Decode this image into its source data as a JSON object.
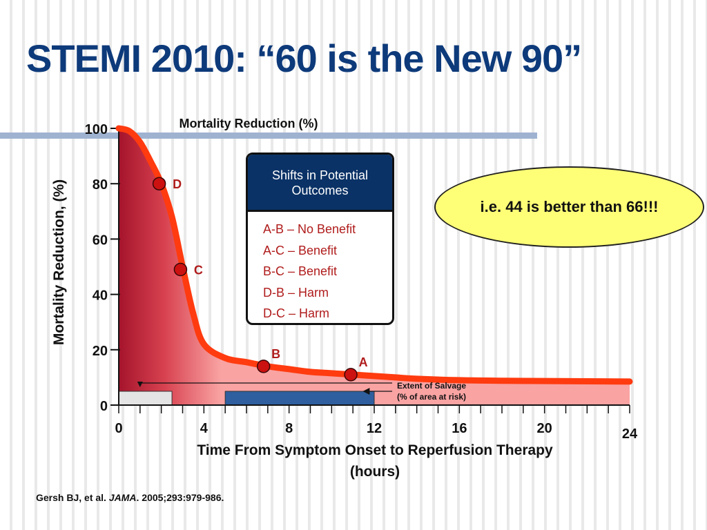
{
  "slide": {
    "title": "STEMI 2010: “60 is the New 90”",
    "citation_authors": "Gersh BJ, et al. ",
    "citation_journal": "JAMA",
    "citation_rest": ". 2005;293:979-986."
  },
  "outcomes_box": {
    "header": "Shifts in Potential Outcomes",
    "items": [
      "A-B – No Benefit",
      "A-C – Benefit",
      "B-C – Benefit",
      "D-B – Harm",
      "D-C – Harm"
    ]
  },
  "callout": {
    "text": "i.e. 44 is better than 66!!!"
  },
  "colors": {
    "title": "#0d3a7a",
    "curve": "#ff3b0f",
    "fill_dark": "#a5142c",
    "fill_light": "#f9a3a3",
    "point": "#cc1111",
    "point_label": "#b01c1c",
    "salvage_bar": "#2f5f9e"
  },
  "chart_data": {
    "type": "area",
    "title": "Mortality Reduction (%)",
    "xlabel": "Time From Symptom Onset to Reperfusion Therapy (hours)",
    "ylabel": "Mortality Reduction, (%)",
    "xlim": [
      0,
      24
    ],
    "ylim": [
      0,
      100
    ],
    "x_ticks": [
      0,
      4,
      8,
      12,
      16,
      20,
      24
    ],
    "y_ticks": [
      0,
      20,
      40,
      60,
      80,
      100
    ],
    "x_minor_step": 1,
    "series": [
      {
        "x": [
          0,
          0.5,
          1,
          1.5,
          2,
          2.5,
          3,
          3.5,
          4,
          5,
          6,
          7,
          8,
          9,
          10,
          11,
          12,
          13,
          14,
          16,
          18,
          20,
          22,
          24
        ],
        "y": [
          100,
          99,
          95,
          88,
          80,
          68,
          50,
          33,
          22,
          17,
          15.5,
          14,
          13,
          12,
          11.5,
          11,
          10.5,
          10,
          9.5,
          9,
          8.8,
          8.7,
          8.6,
          8.5
        ]
      }
    ],
    "points": [
      {
        "label": "D",
        "x": 1.9,
        "y": 80
      },
      {
        "label": "C",
        "x": 2.9,
        "y": 49
      },
      {
        "label": "B",
        "x": 6.8,
        "y": 14
      },
      {
        "label": "A",
        "x": 10.9,
        "y": 11
      }
    ],
    "salvage_bars": [
      {
        "x_start": 0,
        "x_end": 2.5
      },
      {
        "x_start": 5,
        "x_end": 12
      }
    ],
    "annotation": {
      "arrow_x_start": 1,
      "arrow_x_end": 12.5,
      "line1": "Extent of Salvage",
      "line2": "(% of area at risk)"
    }
  }
}
